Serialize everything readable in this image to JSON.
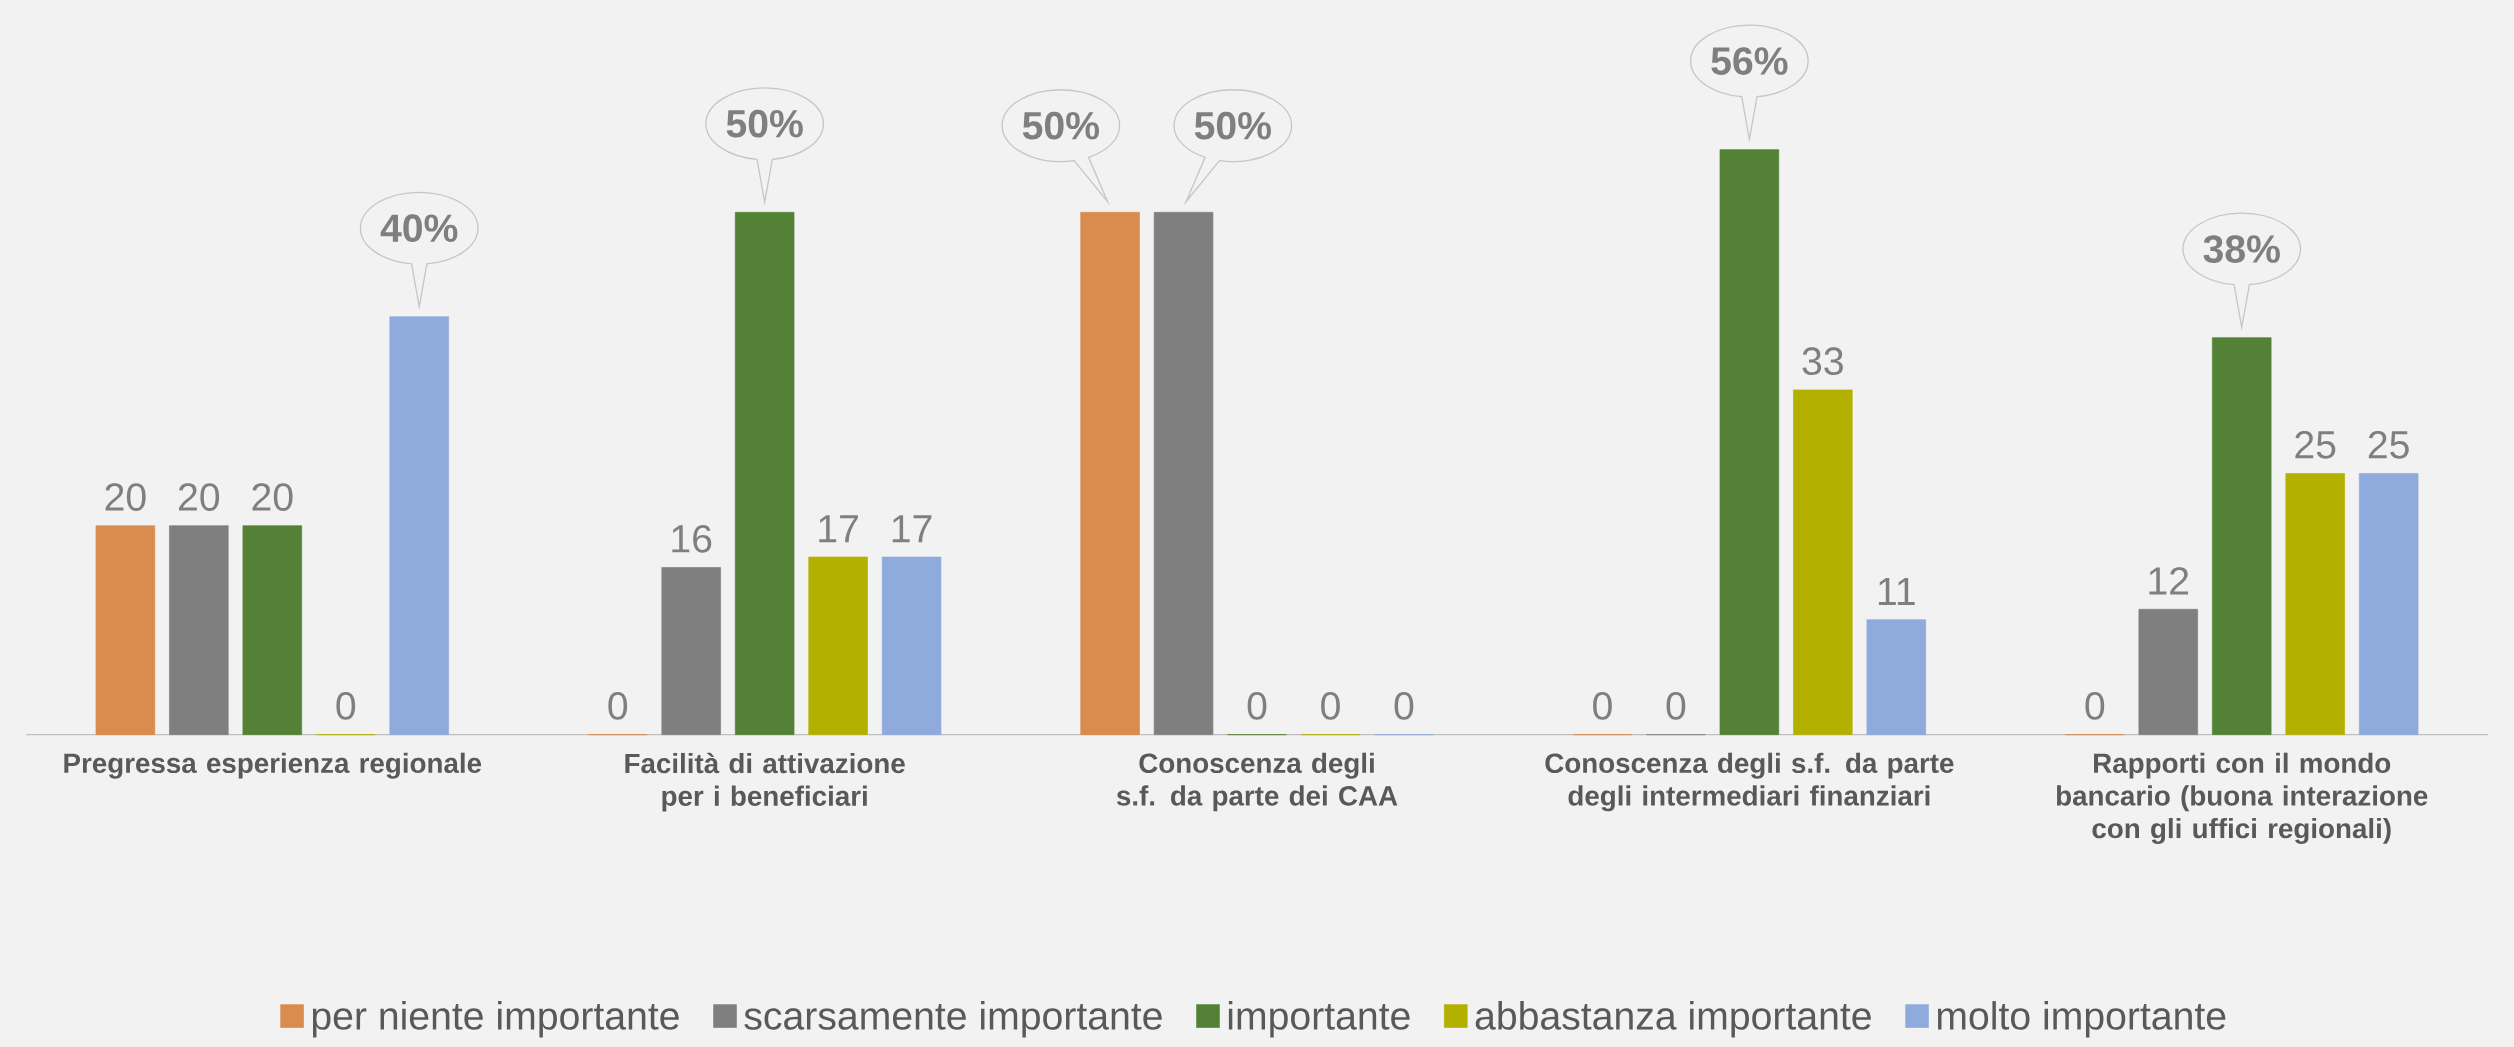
{
  "chart_data": {
    "type": "bar",
    "categories": [
      "Pregressa esperienza regionale",
      "Facilità di attivazione per i beneficiari",
      "Conoscenza degli s.f. da parte dei CAA",
      "Conoscenza degli s.f. da parte degli intermediari finanziari",
      "Rapporti con il mondo bancario (buona interazione con gli uffici regionali)"
    ],
    "series": [
      {
        "name": "per niente importante",
        "color": "#d98c4e",
        "values": [
          20,
          0,
          50,
          0,
          0
        ],
        "value_labels": [
          "20",
          "0",
          "50%",
          "0",
          "0"
        ]
      },
      {
        "name": "scarsamente importante",
        "color": "#7f7f7f",
        "values": [
          20,
          16,
          50,
          0,
          12
        ],
        "value_labels": [
          "20",
          "16",
          "50%",
          "0",
          "12"
        ]
      },
      {
        "name": "importante",
        "color": "#538135",
        "values": [
          20,
          50,
          0,
          56,
          38
        ],
        "value_labels": [
          "20",
          "50%",
          "0",
          "56%",
          "38%"
        ]
      },
      {
        "name": "abbastanza importante",
        "color": "#b4b000",
        "values": [
          0,
          17,
          0,
          33,
          25
        ],
        "value_labels": [
          "0",
          "17",
          "0",
          "33",
          "25"
        ]
      },
      {
        "name": "molto importante",
        "color": "#8faadc",
        "values": [
          40,
          17,
          0,
          11,
          25
        ],
        "value_labels": [
          "40%",
          "17",
          "0",
          "11",
          "25"
        ]
      }
    ],
    "legend": "bottom"
  }
}
